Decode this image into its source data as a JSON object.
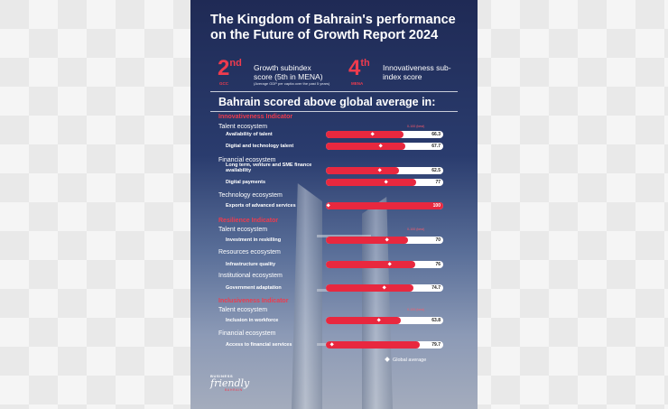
{
  "poster": {
    "title": "The Kingdom of Bahrain's performance on the Future of Growth Report 2024",
    "rank1": {
      "num": "2",
      "suffix": "nd",
      "sub": "GCC",
      "label": "Growth subindex score (5th in MENA)",
      "note": "(Average GDP per capita over the past 5 years)"
    },
    "rank2": {
      "num": "4",
      "suffix": "th",
      "sub": "MENA",
      "label": "Innovativeness sub-index score"
    },
    "subhead": "Bahrain scored above global average in:",
    "best_label": "0-100 (best)",
    "legend_label": "Global average",
    "logo": {
      "top": "BUSINESS",
      "script": "friendly",
      "bottom": "BAHRAIN"
    },
    "colors": {
      "accent": "#e8283f",
      "background": "#1f2a55"
    }
  },
  "chart_data": {
    "type": "bar",
    "orientation": "horizontal",
    "xlim": [
      0,
      100
    ],
    "sections": [
      {
        "name": "Innovativeness Indicator",
        "groups": [
          {
            "name": "Talent ecosystem",
            "items": [
              {
                "label": "Availability of talent",
                "value": 66.3,
                "display": "66.3",
                "global_avg": 40
              },
              {
                "label": "Digital and technology talent",
                "value": 67.7,
                "display": "67.7",
                "global_avg": 47
              }
            ]
          },
          {
            "name": "Financial ecosystem",
            "items": [
              {
                "label": "Long term, venture and SME finance availability",
                "value": 62.5,
                "display": "62.5",
                "global_avg": 46
              },
              {
                "label": "Digital payments",
                "value": 77,
                "display": "77",
                "global_avg": 51
              }
            ]
          },
          {
            "name": "Technology ecosystem",
            "items": [
              {
                "label": "Exports of advanced services",
                "value": 100,
                "display": "100",
                "global_avg": 2
              }
            ]
          }
        ]
      },
      {
        "name": "Resilience Indicator",
        "groups": [
          {
            "name": "Talent ecosystem",
            "items": [
              {
                "label": "Investment in reskilling",
                "value": 70,
                "display": "70",
                "global_avg": 52
              }
            ]
          },
          {
            "name": "Resources ecosystem",
            "items": [
              {
                "label": "Infrastructure quality",
                "value": 76,
                "display": "76",
                "global_avg": 54
              }
            ]
          },
          {
            "name": "Institutional ecosystem",
            "items": [
              {
                "label": "Government adaptation",
                "value": 74.7,
                "display": "74.7",
                "global_avg": 50
              }
            ]
          }
        ]
      },
      {
        "name": "Inclusiveness Indicator",
        "groups": [
          {
            "name": "Talent ecosystem",
            "items": [
              {
                "label": "Inclusion in workforce",
                "value": 63.8,
                "display": "63.8",
                "global_avg": 45
              }
            ]
          },
          {
            "name": "Financial ecosystem",
            "items": [
              {
                "label": "Access to financial services",
                "value": 79.7,
                "display": "79.7",
                "global_avg": 5
              }
            ]
          }
        ]
      }
    ]
  }
}
